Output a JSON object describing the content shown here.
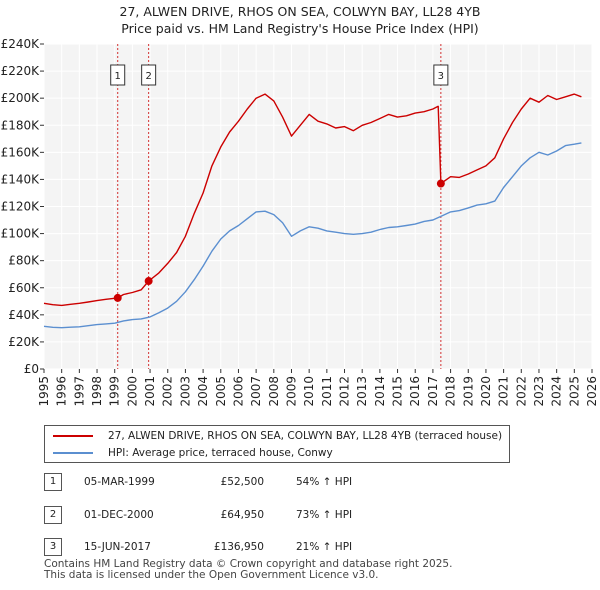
{
  "title_line1": "27, ALWEN DRIVE, RHOS ON SEA, COLWYN BAY, LL28 4YB",
  "title_line2": "Price paid vs. HM Land Registry's House Price Index (HPI)",
  "chart_data": {
    "type": "line",
    "title": "27, ALWEN DRIVE, RHOS ON SEA, COLWYN BAY, LL28 4YB — Price paid vs. HM Land Registry's House Price Index (HPI)",
    "xlabel": "",
    "ylabel": "",
    "xlim": [
      1995,
      2026
    ],
    "ylim": [
      0,
      240000
    ],
    "y_ticks": [
      0,
      20000,
      40000,
      60000,
      80000,
      100000,
      120000,
      140000,
      160000,
      180000,
      200000,
      220000,
      240000
    ],
    "y_tick_labels": [
      "£0",
      "£20K",
      "£40K",
      "£60K",
      "£80K",
      "£100K",
      "£120K",
      "£140K",
      "£160K",
      "£180K",
      "£200K",
      "£220K",
      "£240K"
    ],
    "x_ticks": [
      "1995",
      "1996",
      "1997",
      "1998",
      "1999",
      "2000",
      "2001",
      "2002",
      "2003",
      "2004",
      "2005",
      "2006",
      "2007",
      "2008",
      "2009",
      "2010",
      "2011",
      "2012",
      "2013",
      "2014",
      "2015",
      "2016",
      "2017",
      "2018",
      "2019",
      "2020",
      "2021",
      "2022",
      "2023",
      "2024",
      "2025",
      "2026"
    ],
    "grid": true,
    "series": [
      {
        "name": "27, ALWEN DRIVE, RHOS ON SEA, COLWYN BAY, LL28 4YB (terraced house)",
        "color": "#cc0000",
        "points": [
          [
            1995.0,
            48500
          ],
          [
            1995.5,
            47500
          ],
          [
            1996.0,
            47000
          ],
          [
            1996.5,
            47800
          ],
          [
            1997.0,
            48500
          ],
          [
            1997.5,
            49500
          ],
          [
            1998.0,
            50500
          ],
          [
            1998.5,
            51500
          ],
          [
            1999.17,
            52500
          ],
          [
            1999.5,
            55000
          ],
          [
            2000.0,
            56500
          ],
          [
            2000.5,
            58500
          ],
          [
            2000.92,
            64950
          ],
          [
            2001.5,
            71000
          ],
          [
            2002.0,
            78000
          ],
          [
            2002.5,
            86000
          ],
          [
            2003.0,
            98000
          ],
          [
            2003.5,
            115000
          ],
          [
            2004.0,
            130000
          ],
          [
            2004.5,
            150000
          ],
          [
            2005.0,
            164000
          ],
          [
            2005.5,
            175000
          ],
          [
            2006.0,
            183000
          ],
          [
            2006.5,
            192000
          ],
          [
            2007.0,
            200000
          ],
          [
            2007.5,
            203000
          ],
          [
            2008.0,
            198000
          ],
          [
            2008.5,
            186000
          ],
          [
            2009.0,
            172000
          ],
          [
            2009.5,
            180000
          ],
          [
            2010.0,
            188000
          ],
          [
            2010.5,
            183000
          ],
          [
            2011.0,
            181000
          ],
          [
            2011.5,
            178000
          ],
          [
            2012.0,
            179000
          ],
          [
            2012.5,
            176000
          ],
          [
            2013.0,
            180000
          ],
          [
            2013.5,
            182000
          ],
          [
            2014.0,
            185000
          ],
          [
            2014.5,
            188000
          ],
          [
            2015.0,
            186000
          ],
          [
            2015.5,
            187000
          ],
          [
            2016.0,
            189000
          ],
          [
            2016.5,
            190000
          ],
          [
            2017.0,
            192000
          ],
          [
            2017.3,
            194000
          ],
          [
            2017.45,
            136950
          ],
          [
            2018.0,
            142000
          ],
          [
            2018.5,
            141500
          ],
          [
            2019.0,
            144000
          ],
          [
            2019.5,
            147000
          ],
          [
            2020.0,
            150000
          ],
          [
            2020.5,
            156000
          ],
          [
            2021.0,
            170000
          ],
          [
            2021.5,
            182000
          ],
          [
            2022.0,
            192000
          ],
          [
            2022.5,
            200000
          ],
          [
            2023.0,
            197000
          ],
          [
            2023.5,
            202000
          ],
          [
            2024.0,
            199000
          ],
          [
            2024.5,
            201000
          ],
          [
            2025.0,
            203000
          ],
          [
            2025.4,
            201000
          ]
        ]
      },
      {
        "name": "HPI: Average price, terraced house, Conwy",
        "color": "#5b8fd0",
        "points": [
          [
            1995.0,
            31500
          ],
          [
            1995.5,
            30800
          ],
          [
            1996.0,
            30500
          ],
          [
            1996.5,
            30900
          ],
          [
            1997.0,
            31200
          ],
          [
            1997.5,
            32000
          ],
          [
            1998.0,
            32800
          ],
          [
            1998.5,
            33300
          ],
          [
            1999.0,
            33800
          ],
          [
            1999.5,
            35500
          ],
          [
            2000.0,
            36500
          ],
          [
            2000.5,
            37000
          ],
          [
            2001.0,
            38500
          ],
          [
            2001.5,
            41500
          ],
          [
            2002.0,
            45000
          ],
          [
            2002.5,
            50000
          ],
          [
            2003.0,
            57000
          ],
          [
            2003.5,
            66000
          ],
          [
            2004.0,
            76000
          ],
          [
            2004.5,
            87000
          ],
          [
            2005.0,
            96000
          ],
          [
            2005.5,
            102000
          ],
          [
            2006.0,
            106000
          ],
          [
            2006.5,
            111000
          ],
          [
            2007.0,
            116000
          ],
          [
            2007.5,
            116500
          ],
          [
            2008.0,
            114000
          ],
          [
            2008.5,
            108000
          ],
          [
            2009.0,
            98000
          ],
          [
            2009.5,
            102000
          ],
          [
            2010.0,
            105000
          ],
          [
            2010.5,
            104000
          ],
          [
            2011.0,
            102000
          ],
          [
            2011.5,
            101000
          ],
          [
            2012.0,
            100000
          ],
          [
            2012.5,
            99500
          ],
          [
            2013.0,
            100000
          ],
          [
            2013.5,
            101000
          ],
          [
            2014.0,
            103000
          ],
          [
            2014.5,
            104500
          ],
          [
            2015.0,
            105000
          ],
          [
            2015.5,
            106000
          ],
          [
            2016.0,
            107000
          ],
          [
            2016.5,
            109000
          ],
          [
            2017.0,
            110000
          ],
          [
            2017.5,
            113000
          ],
          [
            2018.0,
            116000
          ],
          [
            2018.5,
            117000
          ],
          [
            2019.0,
            119000
          ],
          [
            2019.5,
            121000
          ],
          [
            2020.0,
            122000
          ],
          [
            2020.5,
            124000
          ],
          [
            2021.0,
            134000
          ],
          [
            2021.5,
            142000
          ],
          [
            2022.0,
            150000
          ],
          [
            2022.5,
            156000
          ],
          [
            2023.0,
            160000
          ],
          [
            2023.5,
            158000
          ],
          [
            2024.0,
            161000
          ],
          [
            2024.5,
            165000
          ],
          [
            2025.0,
            166000
          ],
          [
            2025.4,
            167000
          ]
        ]
      }
    ],
    "annotations": [
      {
        "label": "1",
        "x": 1999.17,
        "value": 52500
      },
      {
        "label": "2",
        "x": 2000.92,
        "value": 64950
      },
      {
        "label": "3",
        "x": 2017.45,
        "value": 136950
      }
    ]
  },
  "legend": {
    "property_label": "27, ALWEN DRIVE, RHOS ON SEA, COLWYN BAY, LL28 4YB (terraced house)",
    "hpi_label": "HPI: Average price, terraced house, Conwy",
    "property_color": "#cc0000",
    "hpi_color": "#5b8fd0"
  },
  "sales": [
    {
      "number": "1",
      "date": "05-MAR-1999",
      "price": "£52,500",
      "hpi_change": "54% ↑ HPI"
    },
    {
      "number": "2",
      "date": "01-DEC-2000",
      "price": "£64,950",
      "hpi_change": "73% ↑ HPI"
    },
    {
      "number": "3",
      "date": "15-JUN-2017",
      "price": "£136,950",
      "hpi_change": "21% ↑ HPI"
    }
  ],
  "footer": {
    "line1": "Contains HM Land Registry data © Crown copyright and database right 2025.",
    "line2": "This data is licensed under the Open Government Licence v3.0."
  }
}
